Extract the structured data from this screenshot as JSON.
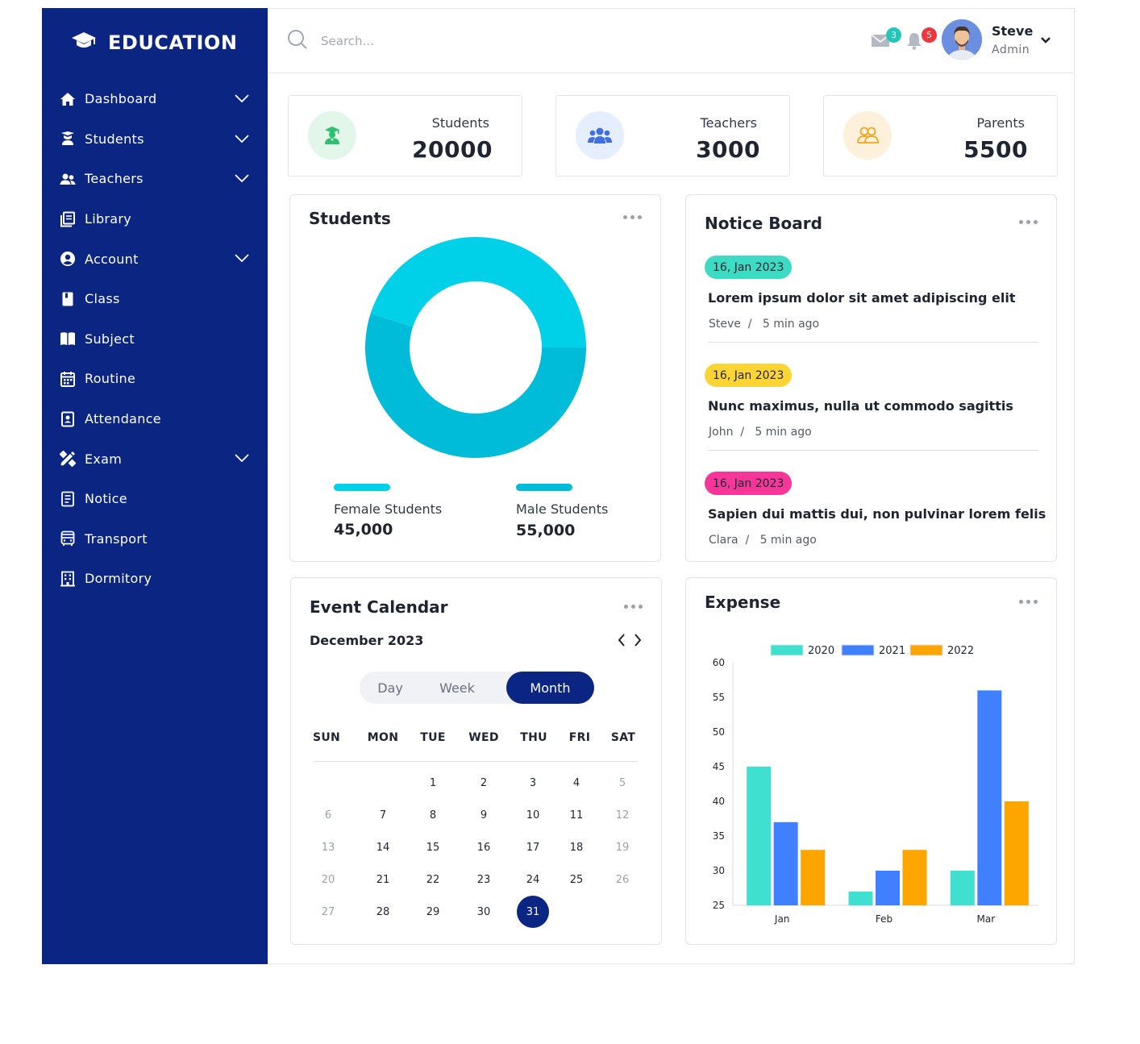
{
  "brand": {
    "name": "EDUCATION"
  },
  "sidebar": {
    "items": [
      {
        "label": "Dashboard",
        "icon": "home-icon",
        "chevron": true
      },
      {
        "label": "Students",
        "icon": "student-icon",
        "chevron": true
      },
      {
        "label": "Teachers",
        "icon": "users-icon",
        "chevron": true
      },
      {
        "label": "Library",
        "icon": "library-icon",
        "chevron": false
      },
      {
        "label": "Account",
        "icon": "account-icon",
        "chevron": true
      },
      {
        "label": "Class",
        "icon": "book-icon",
        "chevron": false
      },
      {
        "label": "Subject",
        "icon": "open-book-icon",
        "chevron": false
      },
      {
        "label": "Routine",
        "icon": "calendar-icon",
        "chevron": false
      },
      {
        "label": "Attendance",
        "icon": "id-card-icon",
        "chevron": false
      },
      {
        "label": "Exam",
        "icon": "pencil-ruler-icon",
        "chevron": true
      },
      {
        "label": "Notice",
        "icon": "document-icon",
        "chevron": false
      },
      {
        "label": "Transport",
        "icon": "bus-icon",
        "chevron": false
      },
      {
        "label": "Dormitory",
        "icon": "building-icon",
        "chevron": false
      }
    ]
  },
  "header": {
    "search_placeholder": "Search...",
    "mail_count": "3",
    "notif_count": "5",
    "user_name": "Steve",
    "user_role": "Admin"
  },
  "stats": [
    {
      "label": "Students",
      "value": "20000",
      "color": "#2fbf71",
      "bg": "#e3f6ea",
      "icon": "graduate-icon"
    },
    {
      "label": "Teachers",
      "value": "3000",
      "color": "#3f6fe0",
      "bg": "#e5eefc",
      "icon": "group-icon"
    },
    {
      "label": "Parents",
      "value": "5500",
      "color": "#f5a524",
      "bg": "#fdf1dc",
      "icon": "parents-icon"
    }
  ],
  "students_panel": {
    "title": "Students",
    "female_label": "Female Students",
    "female_value": "45,000",
    "male_label": "Male Students",
    "male_value": "55,000",
    "female_color": "#00d0e8",
    "male_color": "#00bcd8"
  },
  "notice_board": {
    "title": "Notice Board",
    "items": [
      {
        "date": "16, Jan 2023",
        "date_color": "#3ddbc4",
        "title": "Lorem ipsum dolor sit amet adipiscing elit",
        "author": "Steve",
        "time": "5 min ago"
      },
      {
        "date": "16, Jan 2023",
        "date_color": "#fcd535",
        "title": "Nunc maximus, nulla ut commodo sagittis",
        "author": "John",
        "time": "5 min ago"
      },
      {
        "date": "16, Jan 2023",
        "date_color": "#f5379a",
        "title": "Sapien dui mattis dui, non pulvinar lorem felis",
        "author": "Clara",
        "time": "5 min ago"
      }
    ]
  },
  "calendar": {
    "title": "Event Calendar",
    "month": "December 2023",
    "views": [
      "Day",
      "Week",
      "Month"
    ],
    "active_view": "Month",
    "weekdays": [
      "SUN",
      "MON",
      "TUE",
      "WED",
      "THU",
      "FRI",
      "SAT"
    ],
    "weeks": [
      [
        "",
        "",
        "1",
        "2",
        "3",
        "4",
        "5"
      ],
      [
        "6",
        "7",
        "8",
        "9",
        "10",
        "11",
        "12"
      ],
      [
        "13",
        "14",
        "15",
        "16",
        "17",
        "18",
        "19"
      ],
      [
        "20",
        "21",
        "22",
        "23",
        "24",
        "25",
        "26"
      ],
      [
        "27",
        "28",
        "29",
        "30",
        "31",
        "",
        ""
      ]
    ],
    "selected": "31"
  },
  "expense": {
    "title": "Expense",
    "chart_data": {
      "type": "bar",
      "categories": [
        "Jan",
        "Feb",
        "Mar"
      ],
      "series": [
        {
          "name": "2020",
          "values": [
            45,
            27,
            30
          ],
          "color": "#40e0d0"
        },
        {
          "name": "2021",
          "values": [
            37,
            30,
            56
          ],
          "color": "#4080ff"
        },
        {
          "name": "2022",
          "values": [
            33,
            33,
            40
          ],
          "color": "#ffa500"
        }
      ],
      "ylim": [
        25,
        60
      ],
      "yticks": [
        "60",
        "55",
        "50",
        "45",
        "40",
        "35",
        "30",
        "25"
      ],
      "legend": "top"
    }
  }
}
